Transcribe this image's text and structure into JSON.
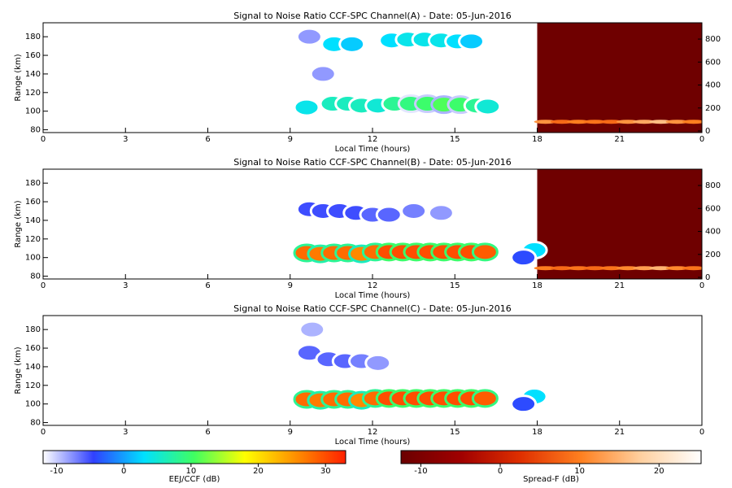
{
  "chart_data": [
    {
      "type": "heatmap",
      "title": "Signal to Noise Ratio CCF-SPC Channel(A) - Date: 05-Jun-2016",
      "xlabel": "Local Time (hours)",
      "ylabel": "Range (km)",
      "xlim": [
        0,
        24
      ],
      "xticks": [
        0,
        3,
        6,
        9,
        12,
        15,
        18,
        21,
        {
          "value": 24,
          "label": "0"
        }
      ],
      "ylim": [
        77,
        195
      ],
      "yticks": [
        80,
        100,
        120,
        140,
        160,
        180
      ],
      "y2lim": [
        -14,
        942
      ],
      "y2ticks": [
        0,
        200,
        400,
        600,
        800
      ],
      "points": {
        "x": [
          9.6,
          10.55,
          11.1,
          11.6,
          12.2,
          12.8,
          13.4,
          14.0,
          14.6,
          15.2,
          15.8,
          16.2,
          10.6,
          11.25,
          12.7,
          13.3,
          13.9,
          14.5,
          15.1,
          15.6,
          9.7,
          10.2
        ],
        "y": [
          104,
          108,
          108,
          106,
          106,
          108,
          108,
          108,
          107,
          107,
          106,
          105,
          172,
          172,
          176,
          177,
          177,
          176,
          175,
          175,
          180,
          140
        ],
        "values": [
          4,
          6,
          6,
          6,
          5,
          8,
          9,
          10,
          11,
          10,
          8,
          5,
          3,
          2,
          3,
          4,
          4,
          4,
          3,
          2,
          -8,
          -8
        ]
      },
      "spread_f": {
        "axis": "y2",
        "fill_value": -12,
        "x": [
          18.3,
          18.9,
          19.5,
          20.1,
          20.7,
          21.3,
          21.9,
          22.5,
          23.1,
          23.7
        ],
        "y": [
          80,
          80,
          80,
          80,
          80,
          80,
          80,
          80,
          80,
          80
        ],
        "values": [
          12,
          8,
          10,
          9,
          8,
          12,
          14,
          16,
          12,
          10
        ]
      }
    },
    {
      "type": "heatmap",
      "title": "Signal to Noise Ratio CCF-SPC Channel(B) - Date: 05-Jun-2016",
      "xlabel": "Local Time (hours)",
      "ylabel": "Range (km)",
      "xlim": [
        0,
        24
      ],
      "xticks": [
        0,
        3,
        6,
        9,
        12,
        15,
        18,
        21,
        {
          "value": 24,
          "label": "0"
        }
      ],
      "ylim": [
        77,
        195
      ],
      "yticks": [
        80,
        100,
        120,
        140,
        160,
        180
      ],
      "y2lim": [
        -14,
        942
      ],
      "y2ticks": [
        0,
        200,
        400,
        600,
        800
      ],
      "points": {
        "x": [
          9.6,
          10.1,
          10.6,
          11.1,
          11.6,
          12.1,
          12.6,
          13.1,
          13.6,
          14.1,
          14.6,
          15.1,
          15.6,
          16.1,
          9.7,
          10.2,
          10.8,
          11.4,
          12.0,
          12.6,
          13.5,
          14.5,
          17.9,
          17.5
        ],
        "y": [
          105,
          104,
          105,
          105,
          104,
          106,
          106,
          106,
          106,
          106,
          106,
          106,
          106,
          106,
          152,
          150,
          150,
          148,
          146,
          146,
          150,
          148,
          108,
          100
        ],
        "values": [
          28,
          27,
          28,
          28,
          26,
          28,
          30,
          30,
          30,
          30,
          30,
          30,
          30,
          29,
          -5,
          -5,
          -5,
          -5,
          -6,
          -6,
          -7,
          -8,
          3,
          -4
        ]
      },
      "spread_f": {
        "axis": "y2",
        "fill_value": -12,
        "x": [
          18.3,
          18.9,
          19.5,
          20.1,
          20.7,
          21.3,
          21.9,
          22.5,
          23.1,
          23.7
        ],
        "y": [
          80,
          80,
          80,
          80,
          80,
          80,
          80,
          80,
          80,
          80
        ],
        "values": [
          10,
          8,
          9,
          8,
          9,
          11,
          13,
          15,
          11,
          9
        ]
      }
    },
    {
      "type": "heatmap",
      "title": "Signal to Noise Ratio CCF-SPC Channel(C) - Date: 05-Jun-2016",
      "xlabel": "Local Time (hours)",
      "ylabel": "Range (km)",
      "xlim": [
        0,
        24
      ],
      "xticks": [
        0,
        3,
        6,
        9,
        12,
        15,
        18,
        21,
        {
          "value": 24,
          "label": "0"
        }
      ],
      "ylim": [
        77,
        195
      ],
      "yticks": [
        80,
        100,
        120,
        140,
        160,
        180
      ],
      "points": {
        "x": [
          9.6,
          10.1,
          10.6,
          11.1,
          11.6,
          12.1,
          12.6,
          13.1,
          13.6,
          14.1,
          14.6,
          15.1,
          15.6,
          16.1,
          9.7,
          10.4,
          11.0,
          11.6,
          12.2,
          9.8,
          17.9,
          17.5
        ],
        "y": [
          105,
          104,
          105,
          105,
          104,
          106,
          106,
          106,
          106,
          106,
          106,
          106,
          106,
          106,
          155,
          148,
          146,
          146,
          144,
          180,
          108,
          100
        ],
        "values": [
          28,
          27,
          28,
          28,
          26,
          28,
          30,
          30,
          30,
          30,
          30,
          30,
          30,
          29,
          -6,
          -6,
          -6,
          -7,
          -8,
          -9,
          3,
          -4
        ]
      }
    }
  ],
  "colorbars": [
    {
      "label": "EEJ/CCF (dB)",
      "lim": [
        -12,
        33
      ],
      "ticks": [
        -10,
        0,
        10,
        20,
        30
      ],
      "colormap": [
        "#ffffff",
        "#3040ff",
        "#00e0ff",
        "#40ff60",
        "#ffff00",
        "#ff9000",
        "#ff2000"
      ]
    },
    {
      "label": "Spread-F (dB)",
      "lim": [
        -12.5,
        25.3
      ],
      "ticks": [
        -10,
        0,
        10,
        20
      ],
      "colormap": [
        "#6b0000",
        "#a00000",
        "#e03000",
        "#ff8020",
        "#ffd0a0",
        "#ffffff"
      ]
    }
  ]
}
